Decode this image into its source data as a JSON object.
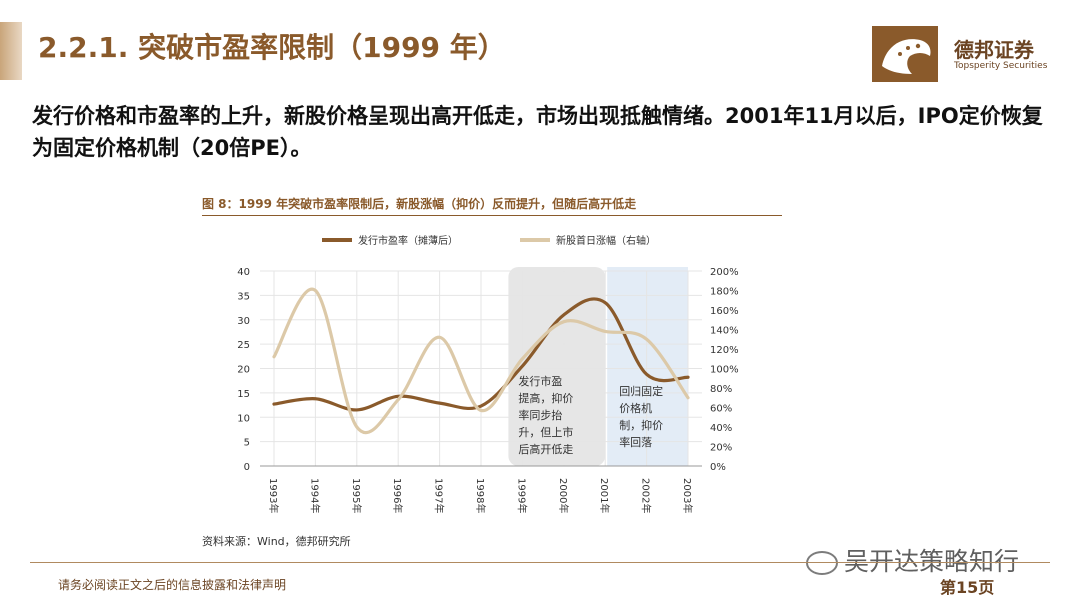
{
  "header": {
    "title": "2.2.1. 突破市盈率限制（1999 年）",
    "logo": {
      "name": "德邦证券",
      "english": "Topsperity Securities",
      "icon": "leopard-logo-icon",
      "color": "#8a5a2b"
    }
  },
  "body_text": "发行价格和市盈率的上升，新股价格呈现出高开低走，市场出现抵触情绪。2001年11月以后，IPO定价恢复为固定价格机制（20倍PE）。",
  "chart_title": "图 8：1999 年突破市盈率限制后，新股涨幅（抑价）反而提升，但随后高开低走",
  "chart_source": "资料来源：Wind，德邦研究所",
  "chart_data": {
    "type": "line",
    "categories": [
      "1993年",
      "1994年",
      "1995年",
      "1996年",
      "1997年",
      "1998年",
      "1999年",
      "2000年",
      "2001年",
      "2002年",
      "2003年"
    ],
    "series": [
      {
        "name": "发行市盈率（摊薄后）",
        "axis": "left",
        "color": "#8a5a2b",
        "values": [
          12.7,
          13.8,
          11.5,
          14.3,
          12.9,
          12.3,
          20.5,
          31.0,
          33.5,
          18.8,
          18.2
        ]
      },
      {
        "name": "新股首日涨幅（右轴）",
        "axis": "right",
        "color": "#dcc9a8",
        "values": [
          1.12,
          1.8,
          0.4,
          0.68,
          1.32,
          0.57,
          1.1,
          1.48,
          1.38,
          1.3,
          0.7
        ]
      }
    ],
    "y_left": {
      "min": 0,
      "max": 40,
      "ticks": [
        "0",
        "5",
        "10",
        "15",
        "20",
        "25",
        "30",
        "35",
        "40"
      ]
    },
    "y_right": {
      "min": 0,
      "max": 2.0,
      "ticks": [
        "0%",
        "20%",
        "40%",
        "60%",
        "80%",
        "100%",
        "120%",
        "140%",
        "160%",
        "180%",
        "200%"
      ]
    },
    "grid": true,
    "legend": "top",
    "annotations": [
      {
        "text": [
          "发行市盈",
          "提高，抑价",
          "率同步抬",
          "升，但上市",
          "后高开低走"
        ],
        "span": [
          "1999年",
          "2001年"
        ],
        "color": "#e6e6e6"
      },
      {
        "text": [
          "回归固定",
          "价格机",
          "制，抑价",
          "率回落"
        ],
        "span": [
          "2001年",
          "2003年"
        ],
        "color": "#e3ecf6"
      }
    ]
  },
  "footer": {
    "disclaimer": "请务必阅读正文之后的信息披露和法律声明",
    "page": "第15页",
    "watermark": "吴开达策略知行"
  }
}
